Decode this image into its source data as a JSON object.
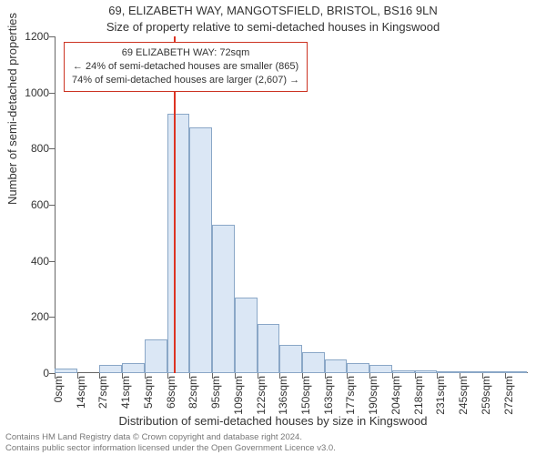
{
  "title": "69, ELIZABETH WAY, MANGOTSFIELD, BRISTOL, BS16 9LN",
  "subtitle": "Size of property relative to semi-detached houses in Kingswood",
  "ylabel": "Number of semi-detached properties",
  "xlabel": "Distribution of semi-detached houses by size in Kingswood",
  "footer_line1": "Contains HM Land Registry data © Crown copyright and database right 2024.",
  "footer_line2": "Contains public sector information licensed under the Open Government Licence v3.0.",
  "chart": {
    "type": "histogram",
    "background_color": "#ffffff",
    "bar_fill": "#dbe7f5",
    "bar_border": "#8aa7c7",
    "axis_color": "#666666",
    "text_color": "#333333",
    "marker_color": "#dd3322",
    "title_fontsize": 13,
    "label_fontsize": 13,
    "tick_fontsize": 12,
    "callout_fontsize": 11,
    "footer_fontsize": 9.5,
    "ylim": [
      0,
      1200
    ],
    "ytick_step": 200,
    "yticks": [
      0,
      200,
      400,
      600,
      800,
      1000,
      1200
    ],
    "xlim": [
      0,
      286
    ],
    "xtick_step": 13.6,
    "xtick_labels": [
      "0sqm",
      "14sqm",
      "27sqm",
      "41sqm",
      "54sqm",
      "68sqm",
      "82sqm",
      "95sqm",
      "109sqm",
      "122sqm",
      "136sqm",
      "150sqm",
      "163sqm",
      "177sqm",
      "190sqm",
      "204sqm",
      "218sqm",
      "231sqm",
      "245sqm",
      "259sqm",
      "272sqm"
    ],
    "bin_width": 13.6,
    "bar_width_ratio": 1.0,
    "values": [
      15,
      0,
      30,
      35,
      120,
      925,
      875,
      530,
      270,
      175,
      100,
      75,
      50,
      35,
      30,
      10,
      10,
      5,
      3,
      3,
      3
    ],
    "marker_x": 72,
    "callout": {
      "line1": "69 ELIZABETH WAY: 72sqm",
      "line2": "← 24% of semi-detached houses are smaller (865)",
      "line3": "74% of semi-detached houses are larger (2,607) →",
      "border_color": "#cc3322",
      "background": "#ffffff"
    }
  }
}
